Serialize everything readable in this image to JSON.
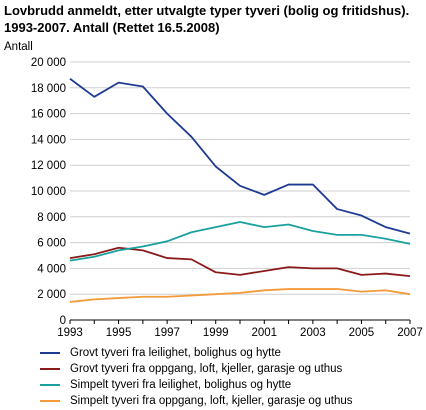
{
  "chart_data": {
    "type": "line",
    "title": "Lovbrudd anmeldt, etter utvalgte typer tyveri (bolig og fritidshus). 1993-2007. Antall (Rettet 16.5.2008)",
    "ylabel": "Antall",
    "xlabel": "",
    "x": [
      1993,
      1994,
      1995,
      1996,
      1997,
      1998,
      1999,
      2000,
      2001,
      2002,
      2003,
      2004,
      2005,
      2006,
      2007
    ],
    "xticks": [
      "1993",
      "1995",
      "1997",
      "1999",
      "2001",
      "2003",
      "2005",
      "2007"
    ],
    "yticks": [
      "0",
      "2 000",
      "4 000",
      "6 000",
      "8 000",
      "10 000",
      "12 000",
      "14 000",
      "16 000",
      "18 000",
      "20 000"
    ],
    "ylim": [
      0,
      20000
    ],
    "grid": true,
    "legend_position": "bottom",
    "series": [
      {
        "name": "Grovt tyveri fra leilighet, bolighus og hytte",
        "color": "#1f3a93",
        "values": [
          18700,
          17300,
          18400,
          18100,
          16000,
          14200,
          11900,
          10400,
          9700,
          10500,
          10500,
          8600,
          8100,
          7200,
          6700
        ]
      },
      {
        "name": "Grovt tyveri fra oppgang, loft, kjeller, garasje og uthus",
        "color": "#8b1a1a",
        "values": [
          4800,
          5100,
          5600,
          5400,
          4800,
          4700,
          3700,
          3500,
          3800,
          4100,
          4000,
          4000,
          3500,
          3600,
          3400
        ]
      },
      {
        "name": "Simpelt tyveri fra leilighet, bolighus og hytte",
        "color": "#1aa19e",
        "values": [
          4600,
          4900,
          5400,
          5700,
          6100,
          6800,
          7200,
          7600,
          7200,
          7400,
          6900,
          6600,
          6600,
          6300,
          5900
        ]
      },
      {
        "name": "Simpelt tyveri fra oppgang, loft, kjeller, garasje og uthus",
        "color": "#f39a3a",
        "values": [
          1400,
          1600,
          1700,
          1800,
          1800,
          1900,
          2000,
          2100,
          2300,
          2400,
          2400,
          2400,
          2200,
          2300,
          2000
        ]
      }
    ]
  }
}
